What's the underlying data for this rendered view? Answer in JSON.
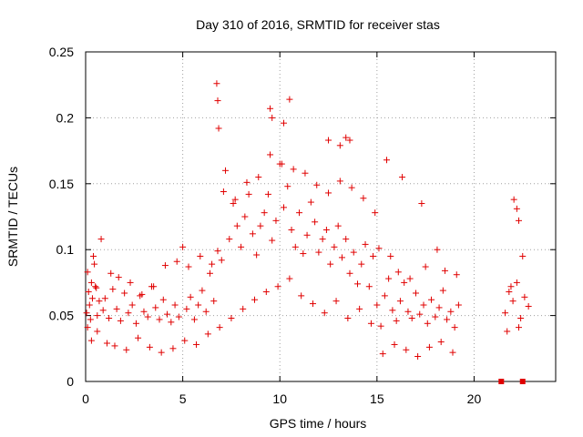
{
  "chart_data": {
    "type": "scatter",
    "title": "Day 310 of 2016, SRMTID for receiver stas",
    "xlabel": "GPS time / hours",
    "ylabel": "SRMTID / TECUs",
    "xlim": [
      0,
      24.2
    ],
    "ylim": [
      0,
      0.25
    ],
    "xticks": [
      0,
      5,
      10,
      15,
      20
    ],
    "yticks": [
      0,
      0.05,
      0.1,
      0.15,
      0.2,
      0.25
    ],
    "ytick_labels": [
      "0",
      "0.05",
      "0.1",
      "0.15",
      "0.2",
      "0.25"
    ],
    "grid": true,
    "marker": "+",
    "color": "#e00000",
    "series": [
      {
        "name": "SRMTID",
        "x": [
          0.05,
          0.1,
          0.15,
          0.2,
          0.25,
          0.3,
          0.35,
          0.4,
          0.5,
          0.6,
          0.7,
          0.8,
          0.9,
          1.0,
          1.2,
          1.4,
          1.6,
          1.8,
          2.0,
          2.2,
          2.4,
          2.6,
          2.8,
          3.0,
          3.2,
          3.4,
          3.6,
          3.8,
          4.0,
          4.2,
          4.4,
          4.6,
          4.8,
          5.0,
          5.2,
          5.4,
          5.6,
          5.8,
          6.0,
          6.2,
          6.4,
          6.6,
          6.8,
          7.0,
          7.2,
          7.4,
          7.6,
          7.8,
          8.0,
          8.2,
          8.4,
          8.6,
          8.8,
          9.0,
          9.2,
          9.4,
          9.6,
          9.8,
          10.0,
          10.2,
          10.4,
          10.6,
          10.8,
          11.0,
          11.2,
          11.4,
          11.6,
          11.8,
          12.0,
          12.2,
          12.4,
          12.6,
          12.8,
          13.0,
          13.2,
          13.4,
          13.6,
          13.8,
          14.0,
          14.2,
          14.4,
          14.6,
          14.8,
          15.0,
          15.2,
          15.4,
          15.6,
          15.8,
          16.0,
          16.2,
          16.4,
          16.6,
          16.8,
          17.0,
          17.2,
          17.4,
          17.6,
          17.8,
          18.0,
          18.2,
          18.4,
          18.6,
          18.8,
          19.0,
          19.2,
          21.6,
          21.8,
          22.0,
          22.2,
          22.4,
          22.6,
          22.8,
          0.3,
          0.6,
          1.1,
          1.5,
          2.1,
          2.7,
          3.3,
          3.9,
          4.5,
          5.1,
          5.7,
          6.3,
          6.9,
          7.5,
          8.1,
          8.7,
          9.3,
          9.9,
          10.5,
          11.1,
          11.7,
          12.3,
          12.9,
          13.5,
          14.1,
          14.7,
          15.3,
          15.9,
          16.5,
          17.1,
          17.7,
          18.3,
          18.9,
          21.7,
          22.3,
          6.75,
          6.8,
          6.85,
          9.5,
          9.6,
          10.2,
          10.5,
          12.5,
          13.1,
          13.4,
          13.6,
          15.5,
          16.3,
          17.3,
          18.1,
          22.05,
          22.2,
          22.3,
          0.1,
          0.45,
          0.55,
          1.3,
          1.7,
          2.3,
          2.9,
          3.5,
          4.1,
          4.7,
          5.3,
          5.9,
          6.5,
          7.1,
          7.7,
          8.3,
          8.9,
          9.5,
          10.1,
          10.7,
          11.3,
          11.9,
          12.5,
          13.1,
          13.7,
          14.3,
          14.9,
          15.1,
          15.7,
          16.1,
          16.7,
          17.5,
          18.5,
          19.1,
          21.9,
          22.5
        ],
        "y": [
          0.052,
          0.041,
          0.068,
          0.058,
          0.047,
          0.075,
          0.063,
          0.095,
          0.072,
          0.05,
          0.061,
          0.108,
          0.054,
          0.063,
          0.048,
          0.07,
          0.055,
          0.046,
          0.067,
          0.052,
          0.058,
          0.044,
          0.065,
          0.053,
          0.049,
          0.072,
          0.056,
          0.047,
          0.062,
          0.051,
          0.045,
          0.058,
          0.049,
          0.102,
          0.055,
          0.064,
          0.047,
          0.058,
          0.069,
          0.053,
          0.082,
          0.061,
          0.099,
          0.092,
          0.16,
          0.108,
          0.135,
          0.118,
          0.102,
          0.125,
          0.142,
          0.112,
          0.096,
          0.118,
          0.128,
          0.142,
          0.107,
          0.122,
          0.165,
          0.132,
          0.148,
          0.115,
          0.102,
          0.128,
          0.097,
          0.111,
          0.136,
          0.121,
          0.098,
          0.108,
          0.115,
          0.089,
          0.102,
          0.118,
          0.094,
          0.108,
          0.082,
          0.098,
          0.074,
          0.089,
          0.104,
          0.072,
          0.095,
          0.058,
          0.042,
          0.065,
          0.078,
          0.054,
          0.046,
          0.061,
          0.075,
          0.053,
          0.048,
          0.067,
          0.051,
          0.058,
          0.044,
          0.062,
          0.049,
          0.056,
          0.069,
          0.047,
          0.053,
          0.041,
          0.058,
          0.052,
          0.068,
          0.061,
          0.075,
          0.048,
          0.064,
          0.057,
          0.031,
          0.038,
          0.029,
          0.027,
          0.024,
          0.033,
          0.026,
          0.022,
          0.025,
          0.031,
          0.028,
          0.036,
          0.041,
          0.048,
          0.055,
          0.062,
          0.068,
          0.072,
          0.078,
          0.065,
          0.059,
          0.052,
          0.061,
          0.048,
          0.055,
          0.044,
          0.021,
          0.028,
          0.024,
          0.019,
          0.026,
          0.03,
          0.022,
          0.038,
          0.041,
          0.226,
          0.213,
          0.192,
          0.207,
          0.2,
          0.196,
          0.214,
          0.183,
          0.179,
          0.185,
          0.183,
          0.168,
          0.155,
          0.135,
          0.1,
          0.138,
          0.131,
          0.122,
          0.083,
          0.089,
          0.071,
          0.082,
          0.079,
          0.075,
          0.066,
          0.072,
          0.088,
          0.091,
          0.087,
          0.095,
          0.089,
          0.144,
          0.138,
          0.151,
          0.155,
          0.172,
          0.165,
          0.161,
          0.158,
          0.149,
          0.143,
          0.152,
          0.147,
          0.139,
          0.128,
          0.101,
          0.095,
          0.083,
          0.078,
          0.087,
          0.084,
          0.081,
          0.072,
          0.095
        ]
      }
    ],
    "gap_markers": {
      "x": [
        21.4,
        22.5
      ],
      "y": [
        0,
        0
      ],
      "marker": "square"
    }
  }
}
